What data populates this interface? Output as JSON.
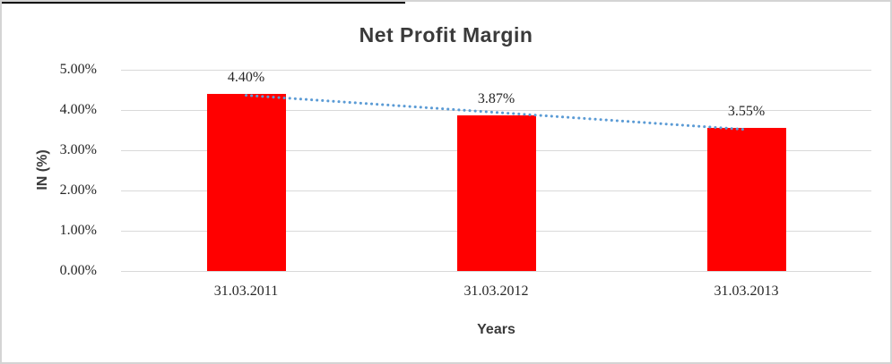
{
  "chart_data": {
    "type": "bar",
    "title": "Net Profit Margin",
    "xlabel": "Years",
    "ylabel": "IN (%)",
    "categories": [
      "31.03.2011",
      "31.03.2012",
      "31.03.2013"
    ],
    "values": [
      4.4,
      3.87,
      3.55
    ],
    "data_labels": [
      "4.40%",
      "3.87%",
      "3.55%"
    ],
    "ylim": [
      0,
      5
    ],
    "ytick_step": 1,
    "ytick_labels": [
      "0.00%",
      "1.00%",
      "2.00%",
      "3.00%",
      "4.00%",
      "5.00%"
    ],
    "grid": true,
    "legend": "none",
    "bar_color": "#ff0000",
    "gridline_color": "#d9d9d9",
    "trendline": {
      "type": "linear",
      "style": "dotted",
      "color": "#5b9bd5",
      "start_value": 4.365,
      "end_value": 3.515
    }
  }
}
